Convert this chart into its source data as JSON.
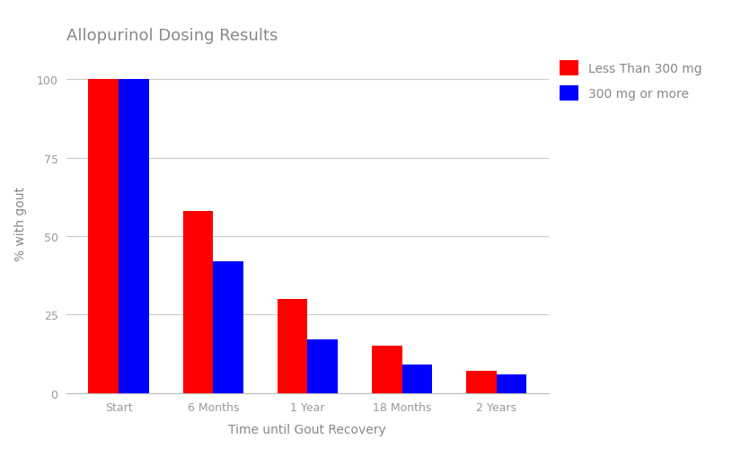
{
  "title": "Allopurinol Dosing Results",
  "xlabel": "Time until Gout Recovery",
  "ylabel": "% with gout",
  "categories": [
    "Start",
    "6 Months",
    "1 Year",
    "18 Months",
    "2 Years"
  ],
  "series": [
    {
      "label": "Less Than 300 mg",
      "color": "#ff0000",
      "values": [
        100,
        58,
        30,
        15,
        7
      ]
    },
    {
      "label": "300 mg or more",
      "color": "#0000ff",
      "values": [
        100,
        42,
        17,
        9,
        6
      ]
    }
  ],
  "ylim": [
    0,
    108
  ],
  "yticks": [
    0,
    25,
    50,
    75,
    100
  ],
  "bar_width": 0.32,
  "background_color": "#ffffff",
  "grid_color": "#cccccc",
  "title_color": "#888888",
  "label_color": "#888888",
  "tick_color": "#999999",
  "title_fontsize": 13,
  "label_fontsize": 10,
  "tick_fontsize": 9,
  "legend_fontsize": 10
}
